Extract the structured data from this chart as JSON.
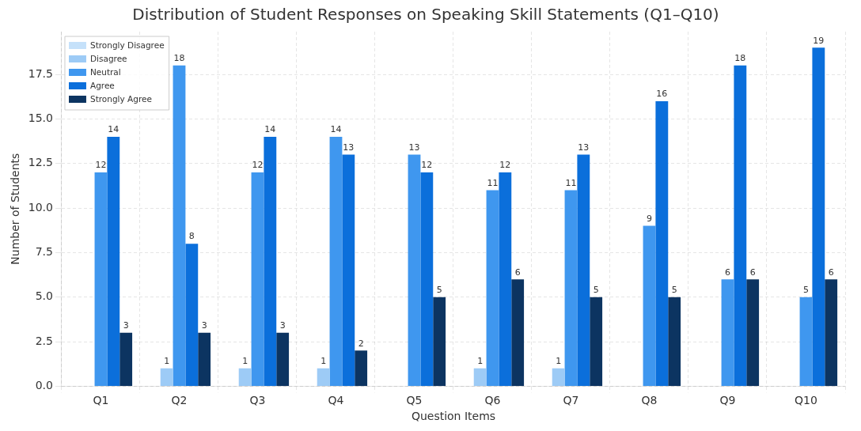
{
  "chart_data": {
    "type": "bar",
    "title": "Distribution of Student Responses on Speaking Skill Statements (Q1–Q10)",
    "xlabel": "Question Items",
    "ylabel": "Number of Students",
    "categories": [
      "Q1",
      "Q2",
      "Q3",
      "Q4",
      "Q5",
      "Q6",
      "Q7",
      "Q8",
      "Q9",
      "Q10"
    ],
    "series": [
      {
        "name": "Strongly Disagree",
        "color": "#c5e1fa",
        "values": [
          0,
          0,
          0,
          0,
          0,
          0,
          0,
          0,
          0,
          0
        ],
        "value_labels": [
          null,
          null,
          null,
          null,
          null,
          null,
          null,
          null,
          null,
          null
        ]
      },
      {
        "name": "Disagree",
        "color": "#9dcbf6",
        "values": [
          0,
          1,
          1,
          1,
          0,
          1,
          1,
          0,
          0,
          0
        ],
        "value_labels": [
          null,
          "1",
          "1",
          "1",
          null,
          "1",
          "1",
          null,
          null,
          null
        ]
      },
      {
        "name": "Neutral",
        "color": "#3f97ef",
        "values": [
          12,
          18,
          12,
          14,
          13,
          11,
          11,
          9,
          6,
          5
        ],
        "value_labels": [
          "12",
          "18",
          "12",
          "14",
          "13",
          "11",
          "11",
          "9",
          "6",
          "5"
        ]
      },
      {
        "name": "Agree",
        "color": "#0b6fdb",
        "values": [
          14,
          8,
          14,
          13,
          12,
          12,
          13,
          16,
          18,
          19
        ],
        "value_labels": [
          "14",
          "8",
          "14",
          "13",
          "12",
          "12",
          "13",
          "16",
          "18",
          "19"
        ]
      },
      {
        "name": "Strongly Agree",
        "color": "#0c3461",
        "values": [
          3,
          3,
          3,
          2,
          5,
          6,
          5,
          5,
          6,
          6
        ],
        "value_labels": [
          "3",
          "3",
          "3",
          "2",
          "5",
          "6",
          "5",
          "5",
          "6",
          "6"
        ]
      }
    ],
    "ylim": [
      0,
      19.9
    ],
    "yticks": [
      {
        "value": 0,
        "label": "0.0"
      },
      {
        "value": 2.5,
        "label": "2.5"
      },
      {
        "value": 5,
        "label": "5.0"
      },
      {
        "value": 7.5,
        "label": "7.5"
      },
      {
        "value": 10,
        "label": "10.0"
      },
      {
        "value": 12.5,
        "label": "12.5"
      },
      {
        "value": 15,
        "label": "15.0"
      },
      {
        "value": 17.5,
        "label": "17.5"
      }
    ],
    "grid": true,
    "line_style": "dashed",
    "legend": "top left"
  }
}
